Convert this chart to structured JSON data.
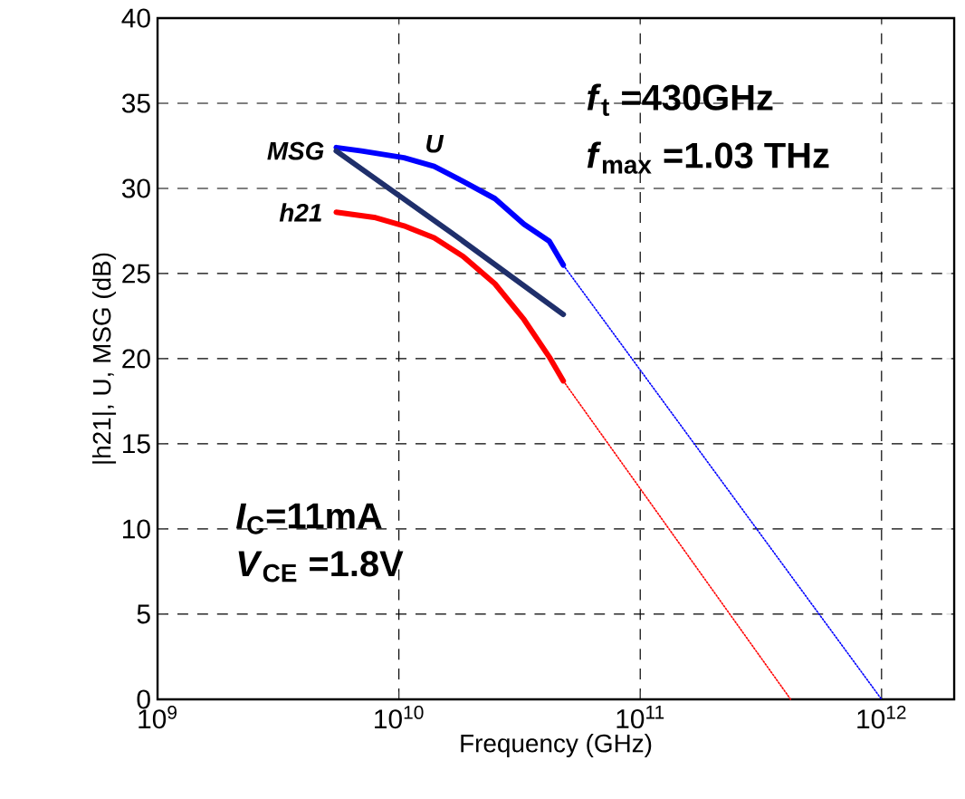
{
  "chart_data": {
    "type": "line",
    "xlabel": "Frequency (GHz)",
    "ylabel": "|h21|, U, MSG (dB)",
    "log": "x",
    "grid": true,
    "legend": false,
    "marker": "none",
    "xlim": [
      1000000000.0,
      2000000000000.0
    ],
    "ylim": [
      0,
      40
    ],
    "xticks": [
      {
        "value": 1000000000.0,
        "label": "10$^{9}$"
      },
      {
        "value": 10000000000.0,
        "label": "10$^{10}$"
      },
      {
        "value": 100000000000.0,
        "label": "10$^{11}$"
      },
      {
        "value": 1000000000000.0,
        "label": "10$^{12}$"
      }
    ],
    "yticks": [
      0,
      5,
      10,
      15,
      20,
      25,
      30,
      35,
      40
    ],
    "series": [
      {
        "name": "U",
        "color": "#0000ff",
        "line_style": "solid",
        "x": [
          5500000000.0,
          7000000000.0,
          10500000000.0,
          14000000000.0,
          18500000000.0,
          25000000000.0,
          33000000000.0,
          42000000000.0,
          48000000000.0
        ],
        "values": [
          32.4,
          32.2,
          31.8,
          31.3,
          30.4,
          29.4,
          27.9,
          26.9,
          25.5
        ]
      },
      {
        "name": "MSG",
        "color": "#1f2f6b",
        "line_style": "solid",
        "x": [
          5500000000.0,
          16500000000.0,
          48000000000.0
        ],
        "values": [
          32.2,
          27.4,
          22.6
        ]
      },
      {
        "name": "h21",
        "color": "#ff0000",
        "line_style": "solid",
        "x": [
          5500000000.0,
          7900000000.0,
          10500000000.0,
          14000000000.0,
          18500000000.0,
          25000000000.0,
          33000000000.0,
          42000000000.0,
          48000000000.0
        ],
        "values": [
          28.6,
          28.3,
          27.8,
          27.1,
          26.0,
          24.4,
          22.3,
          20.1,
          18.7
        ]
      },
      {
        "color": "#0000ff",
        "line_style": "dotted",
        "x": [
          48000000000.0,
          1000000000000.0
        ],
        "values": [
          25.5,
          0
        ]
      },
      {
        "color": "#ff0000",
        "line_style": "dotted",
        "x": [
          48000000000.0,
          420000000000.0
        ],
        "values": [
          18.7,
          0
        ]
      }
    ],
    "annotations": [
      "*f*$_{t}$ =430GHz",
      "*f*$_{max}$ =1.03 THz",
      "*I*$_{C}$=11mA",
      "*V*$_{CE}$ =1.8V"
    ]
  }
}
